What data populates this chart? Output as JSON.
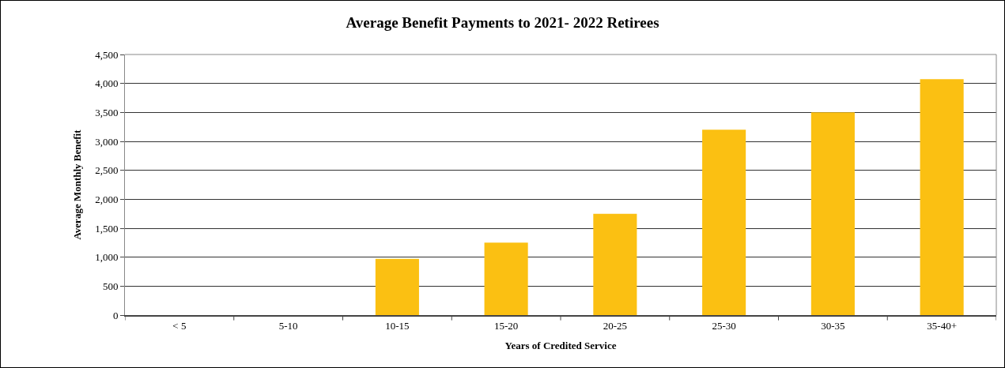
{
  "chart_data": {
    "type": "bar",
    "title": "Average Benefit Payments to 2021- 2022 Retirees",
    "xlabel": "Years of Credited Service",
    "ylabel": "Average Monthly Benefit",
    "categories": [
      "< 5",
      "5-10",
      "10-15",
      "15-20",
      "20-25",
      "25-30",
      "30-35",
      "35-40+"
    ],
    "values": [
      0,
      0,
      970,
      1250,
      1750,
      3200,
      3500,
      4075
    ],
    "color": "#fbc012",
    "ylim": [
      0,
      4500
    ],
    "yticks": [
      {
        "value": 0,
        "label": "0"
      },
      {
        "value": 500,
        "label": "500"
      },
      {
        "value": 1000,
        "label": "1,000"
      },
      {
        "value": 1500,
        "label": "1,500"
      },
      {
        "value": 2000,
        "label": "2,000"
      },
      {
        "value": 2500,
        "label": "2,500"
      },
      {
        "value": 3000,
        "label": "3,000"
      },
      {
        "value": 3500,
        "label": "3,500"
      },
      {
        "value": 4000,
        "label": "4,000"
      },
      {
        "value": 4500,
        "label": "4,500"
      }
    ],
    "grid": "y",
    "legend": false
  }
}
